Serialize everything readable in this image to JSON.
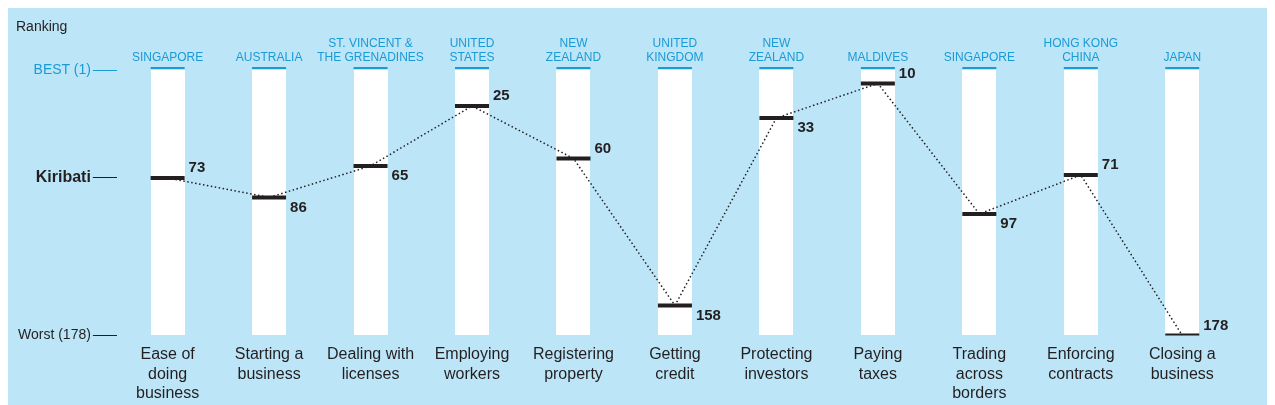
{
  "chart_data": {
    "type": "line",
    "ylabel": "Ranking",
    "categories": [
      "Ease of\ndoing\nbusiness",
      "Starting a\nbusiness",
      "Dealing with\nlicenses",
      "Employing\nworkers",
      "Registering\nproperty",
      "Getting\ncredit",
      "Protecting\ninvestors",
      "Paying\ntaxes",
      "Trading\nacross\nborders",
      "Enforcing\ncontracts",
      "Closing a\nbusiness"
    ],
    "series": [
      {
        "color": "#231f20",
        "values": [
          73,
          86,
          65,
          25,
          60,
          158,
          33,
          10,
          97,
          71,
          178
        ]
      }
    ],
    "line_style": "dotted",
    "data_labels": true,
    "ylim": [
      178,
      1
    ],
    "yticks": [
      {
        "value": 1,
        "label": "BEST (1)"
      },
      {
        "value": 73,
        "label": "Kiribati"
      },
      {
        "value": 178,
        "label": "Worst (178)"
      }
    ],
    "annotations": [
      "SINGAPORE",
      "AUSTRALIA",
      "ST. VINCENT &\nTHE GRENADINES",
      "UNITED\nSTATES",
      "NEW\nZEALAND",
      "UNITED\nKINGDOM",
      "NEW\nZEALAND",
      "MALDIVES",
      "SINGAPORE",
      "HONG KONG\nCHINA",
      "JAPAN"
    ]
  }
}
